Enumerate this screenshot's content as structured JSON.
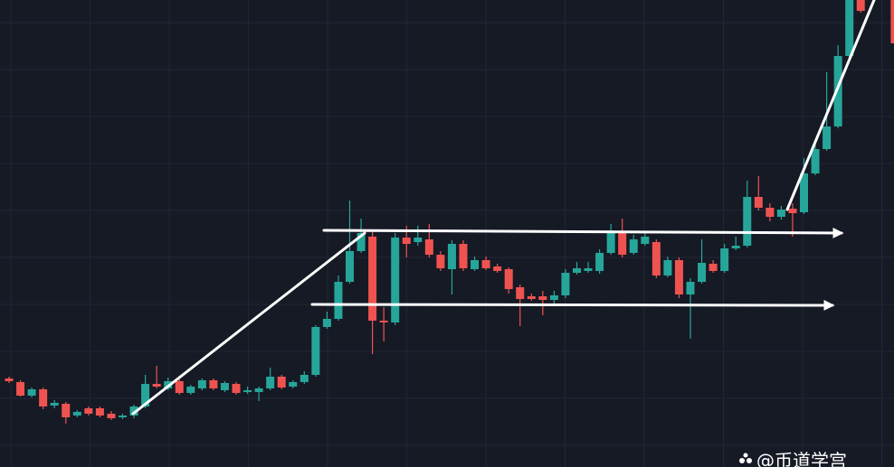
{
  "chart_data": {
    "type": "candlestick",
    "ylim": [
      0,
      517
    ],
    "grid": true,
    "up_color": "#26a69a",
    "down_color": "#ef5350",
    "open": [
      98,
      94,
      79,
      86,
      68,
      70,
      57,
      65,
      65,
      59,
      55,
      57,
      67,
      92,
      87,
      95,
      82,
      87,
      96,
      85,
      92,
      83,
      83,
      87,
      100,
      89,
      94,
      102,
      155,
      164,
      205,
      239,
      255,
      162,
      160,
      254,
      249,
      252,
      235,
      219,
      247,
      219,
      229,
      222,
      219,
      199,
      189,
      189,
      185,
      190,
      215,
      217,
      217,
      237,
      259,
      237,
      247,
      249,
      212,
      229,
      191,
      205,
      225,
      217,
      242,
      245,
      299,
      287,
      277,
      286,
      282,
      325,
      352,
      377,
      455,
      517,
      null,
      null,
      517
    ],
    "high": [
      100,
      96,
      88,
      88,
      74,
      72,
      63,
      67,
      67,
      62,
      59,
      69,
      102,
      112,
      99,
      97,
      91,
      98,
      98,
      95,
      94,
      89,
      89,
      110,
      102,
      96,
      106,
      157,
      172,
      212,
      295,
      275,
      261,
      177,
      259,
      267,
      267,
      269,
      239,
      251,
      251,
      233,
      233,
      225,
      221,
      202,
      192,
      195,
      195,
      219,
      227,
      227,
      241,
      269,
      275,
      257,
      259,
      252,
      233,
      232,
      209,
      252,
      229,
      247,
      255,
      317,
      322,
      292,
      289,
      292,
      342,
      357,
      437,
      467,
      517,
      517,
      null,
      null,
      517
    ],
    "low": [
      93,
      78,
      77,
      64,
      65,
      48,
      55,
      57,
      55,
      52,
      53,
      54,
      65,
      87,
      85,
      80,
      80,
      85,
      85,
      83,
      80,
      81,
      73,
      85,
      86,
      87,
      92,
      100,
      153,
      162,
      203,
      237,
      125,
      139,
      157,
      232,
      245,
      232,
      217,
      191,
      217,
      217,
      218,
      215,
      192,
      156,
      184,
      168,
      179,
      187,
      213,
      215,
      214,
      235,
      232,
      235,
      245,
      209,
      210,
      187,
      142,
      203,
      215,
      215,
      240,
      243,
      284,
      272,
      274,
      255,
      280,
      323,
      350,
      375,
      453,
      503,
      null,
      null,
      467
    ],
    "close": [
      95,
      79,
      86,
      67,
      71,
      55,
      61,
      59,
      57,
      54,
      57,
      67,
      92,
      89,
      95,
      82,
      89,
      96,
      87,
      93,
      82,
      85,
      87,
      100,
      88,
      94,
      102,
      155,
      164,
      205,
      239,
      259,
      162,
      160,
      254,
      247,
      254,
      235,
      220,
      247,
      220,
      229,
      220,
      217,
      197,
      186,
      186,
      185,
      190,
      215,
      220,
      220,
      237,
      259,
      235,
      252,
      255,
      212,
      229,
      191,
      205,
      226,
      217,
      242,
      245,
      299,
      287,
      277,
      285,
      281,
      325,
      352,
      377,
      455,
      517,
      505,
      null,
      null,
      469
    ],
    "watermark": "@币道学宫"
  }
}
